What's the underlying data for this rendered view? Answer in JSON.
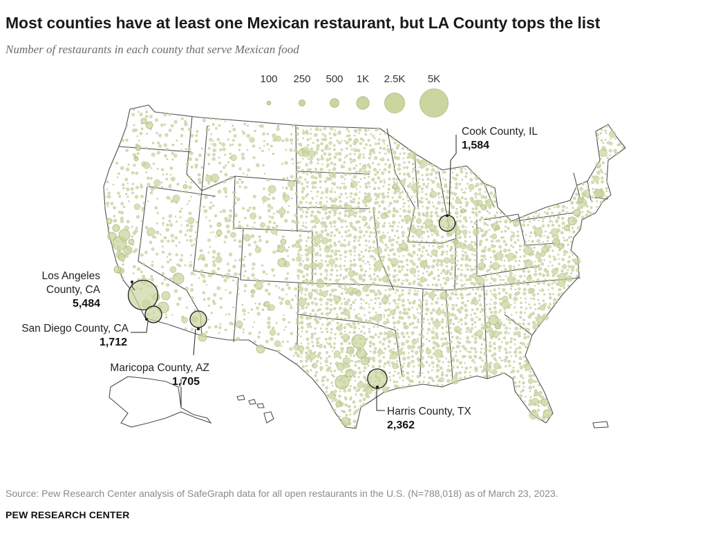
{
  "title": "Most counties have at least one Mexican restaurant, but LA County tops the list",
  "subtitle": "Number of restaurants in each county that serve Mexican food",
  "legend": [
    {
      "label": "100",
      "value": 100
    },
    {
      "label": "250",
      "value": 250
    },
    {
      "label": "500",
      "value": 500
    },
    {
      "label": "1K",
      "value": 1000
    },
    {
      "label": "2.5K",
      "value": 2500
    },
    {
      "label": "5K",
      "value": 5000
    }
  ],
  "colors": {
    "bubble_fill": "#c9d6a0",
    "bubble_stroke": "#a9b97a",
    "highlight_stroke": "#1a1a1a",
    "state_border": "#4d4d4d"
  },
  "callouts": [
    {
      "name_lines": [
        "Los Angeles",
        "County, CA"
      ],
      "value": "5,484",
      "restaurants": 5484
    },
    {
      "name_lines": [
        "San Diego County, CA"
      ],
      "value": "1,712",
      "restaurants": 1712
    },
    {
      "name_lines": [
        "Maricopa County, AZ"
      ],
      "value": "1,705",
      "restaurants": 1705
    },
    {
      "name_lines": [
        "Cook County, IL"
      ],
      "value": "1,584",
      "restaurants": 1584
    },
    {
      "name_lines": [
        "Harris County, TX"
      ],
      "value": "2,362",
      "restaurants": 2362
    }
  ],
  "source": "Source: Pew Research Center analysis of SafeGraph data for all open restaurants in the U.S. (N=788,018) as of March 23, 2023.",
  "brand": "PEW RESEARCH CENTER"
}
